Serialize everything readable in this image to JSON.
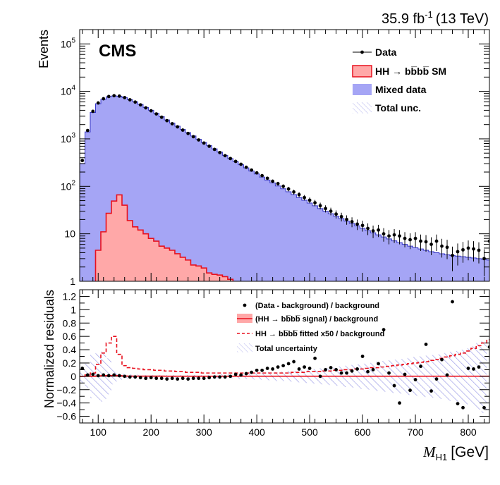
{
  "header": {
    "lumi_value": "35.9 fb",
    "lumi_exp": "-1",
    "energy": "(13 TeV)",
    "experiment": "CMS"
  },
  "chart_data": [
    {
      "type": "histogram",
      "ylabel": "Events",
      "yscale": "log",
      "ylim": [
        1,
        200000
      ],
      "xlim": [
        65,
        840
      ],
      "bin_width": 10,
      "y_ticks": [
        "1",
        "10",
        "10^2",
        "10^3",
        "10^4",
        "10^5"
      ],
      "legend": {
        "placement": "top-right",
        "entries": [
          "Data",
          "HH → bb̅bb̅ SM",
          "Mixed data",
          "Total unc."
        ]
      },
      "bin_edges_start": 65,
      "mixed_data": [
        300,
        1400,
        3600,
        5500,
        6800,
        7700,
        8000,
        7900,
        7400,
        6700,
        6000,
        5300,
        4600,
        4000,
        3450,
        2950,
        2500,
        2150,
        1850,
        1580,
        1350,
        1150,
        980,
        840,
        720,
        615,
        525,
        450,
        385,
        330,
        285,
        245,
        210,
        182,
        157,
        136,
        118,
        102,
        89,
        77,
        67,
        58,
        51,
        44.5,
        39,
        34,
        30,
        26.5,
        23.5,
        21,
        18.5,
        16.5,
        14.7,
        13.1,
        11.7,
        10.5,
        9.5,
        8.6,
        7.8,
        7.1,
        6.5,
        6.0,
        5.5,
        5.1,
        4.8,
        4.5,
        4.2,
        4.0,
        3.8,
        3.6,
        3.5,
        3.4,
        3.3,
        3.2,
        3.1,
        3.0,
        2.9,
        2.8
      ],
      "signal": [
        0.5,
        0.5,
        0.5,
        4.5,
        11,
        27,
        49,
        66,
        40,
        19,
        14,
        12,
        10,
        8,
        7,
        5.5,
        5,
        4.5,
        3.8,
        3.2,
        2.8,
        2.2,
        2.1,
        1.9,
        1.5,
        1.4,
        1.35,
        1.25,
        1.1,
        0.95,
        0.9,
        0.85,
        0.8,
        0.75,
        0.7,
        0.65,
        0.6,
        0.55,
        0.5,
        0.5
      ],
      "data_points": [
        {
          "x": 70,
          "y": 350
        },
        {
          "x": 80,
          "y": 1500
        },
        {
          "x": 90,
          "y": 3800
        },
        {
          "x": 100,
          "y": 5700
        },
        {
          "x": 110,
          "y": 7000
        },
        {
          "x": 120,
          "y": 7800
        },
        {
          "x": 130,
          "y": 8100
        },
        {
          "x": 140,
          "y": 7950
        },
        {
          "x": 150,
          "y": 7400
        },
        {
          "x": 160,
          "y": 6650
        },
        {
          "x": 170,
          "y": 5950
        },
        {
          "x": 180,
          "y": 5200
        },
        {
          "x": 190,
          "y": 4500
        },
        {
          "x": 200,
          "y": 3900
        },
        {
          "x": 210,
          "y": 3350
        },
        {
          "x": 220,
          "y": 2850
        },
        {
          "x": 230,
          "y": 2420
        },
        {
          "x": 240,
          "y": 2080
        },
        {
          "x": 250,
          "y": 1790
        },
        {
          "x": 260,
          "y": 1530
        },
        {
          "x": 270,
          "y": 1300
        },
        {
          "x": 280,
          "y": 1110
        },
        {
          "x": 290,
          "y": 950
        },
        {
          "x": 300,
          "y": 815
        },
        {
          "x": 310,
          "y": 700
        },
        {
          "x": 320,
          "y": 600
        },
        {
          "x": 330,
          "y": 515
        },
        {
          "x": 340,
          "y": 442
        },
        {
          "x": 350,
          "y": 385
        },
        {
          "x": 360,
          "y": 335
        },
        {
          "x": 370,
          "y": 292
        },
        {
          "x": 380,
          "y": 252
        },
        {
          "x": 390,
          "y": 220
        },
        {
          "x": 400,
          "y": 192
        },
        {
          "x": 410,
          "y": 168
        },
        {
          "x": 420,
          "y": 148
        },
        {
          "x": 430,
          "y": 128
        },
        {
          "x": 440,
          "y": 114
        },
        {
          "x": 450,
          "y": 100
        },
        {
          "x": 460,
          "y": 88
        },
        {
          "x": 470,
          "y": 76
        },
        {
          "x": 480,
          "y": 67
        },
        {
          "x": 490,
          "y": 58
        },
        {
          "x": 500,
          "y": 51
        },
        {
          "x": 510,
          "y": 45
        },
        {
          "x": 520,
          "y": 39
        },
        {
          "x": 530,
          "y": 34
        },
        {
          "x": 540,
          "y": 30
        },
        {
          "x": 550,
          "y": 26
        },
        {
          "x": 560,
          "y": 23
        },
        {
          "x": 570,
          "y": 20
        },
        {
          "x": 580,
          "y": 18
        },
        {
          "x": 590,
          "y": 16
        },
        {
          "x": 600,
          "y": 15
        },
        {
          "x": 610,
          "y": 13
        },
        {
          "x": 620,
          "y": 11.5
        },
        {
          "x": 630,
          "y": 12
        },
        {
          "x": 640,
          "y": 10
        },
        {
          "x": 650,
          "y": 9
        },
        {
          "x": 660,
          "y": 9.5
        },
        {
          "x": 670,
          "y": 9
        },
        {
          "x": 680,
          "y": 8
        },
        {
          "x": 690,
          "y": 7.5
        },
        {
          "x": 700,
          "y": 8
        },
        {
          "x": 710,
          "y": 7
        },
        {
          "x": 720,
          "y": 6.8
        },
        {
          "x": 730,
          "y": 6
        },
        {
          "x": 740,
          "y": 7
        },
        {
          "x": 750,
          "y": 5.5
        },
        {
          "x": 760,
          "y": 5.2
        },
        {
          "x": 770,
          "y": 3.5
        },
        {
          "x": 780,
          "y": 4.2
        },
        {
          "x": 790,
          "y": 4.6
        },
        {
          "x": 800,
          "y": 5.0
        },
        {
          "x": 810,
          "y": 4.8
        },
        {
          "x": 820,
          "y": 4.5
        },
        {
          "x": 830,
          "y": 3.0
        },
        {
          "x": 840,
          "y": 7.0
        }
      ]
    },
    {
      "type": "histogram",
      "ylabel": "Normalized residuals",
      "xlabel": "M",
      "xlabel_sub": "H1",
      "xlabel_unit": "[GeV]",
      "ylim": [
        -0.7,
        1.3
      ],
      "xlim": [
        65,
        840
      ],
      "x_ticks": [
        100,
        200,
        300,
        400,
        500,
        600,
        700,
        800
      ],
      "y_ticks": [
        "−0.6",
        "−0.4",
        "−0.2",
        "0",
        "0.2",
        "0.4",
        "0.6",
        "0.8",
        "1",
        "1.2"
      ],
      "legend": {
        "placement": "top-right",
        "entries": [
          "(Data - background) / background",
          "(HH → bb̅bb̅ signal) / background",
          "HH → bb̅bb̅ fitted x50 / background",
          "Total uncertainty"
        ]
      },
      "residual_points": [
        {
          "x": 70,
          "y": 0.12
        },
        {
          "x": 80,
          "y": 0.02
        },
        {
          "x": 90,
          "y": 0.03
        },
        {
          "x": 100,
          "y": 0.01
        },
        {
          "x": 110,
          "y": 0.02
        },
        {
          "x": 120,
          "y": 0.01
        },
        {
          "x": 130,
          "y": 0.02
        },
        {
          "x": 140,
          "y": 0.01
        },
        {
          "x": 150,
          "y": 0.0
        },
        {
          "x": 160,
          "y": -0.01
        },
        {
          "x": 170,
          "y": -0.01
        },
        {
          "x": 180,
          "y": -0.02
        },
        {
          "x": 190,
          "y": -0.03
        },
        {
          "x": 200,
          "y": -0.02
        },
        {
          "x": 210,
          "y": -0.03
        },
        {
          "x": 220,
          "y": -0.03
        },
        {
          "x": 230,
          "y": -0.04
        },
        {
          "x": 240,
          "y": -0.03
        },
        {
          "x": 250,
          "y": -0.04
        },
        {
          "x": 260,
          "y": -0.03
        },
        {
          "x": 270,
          "y": -0.04
        },
        {
          "x": 280,
          "y": -0.03
        },
        {
          "x": 290,
          "y": -0.03
        },
        {
          "x": 300,
          "y": -0.03
        },
        {
          "x": 310,
          "y": -0.02
        },
        {
          "x": 320,
          "y": -0.01
        },
        {
          "x": 330,
          "y": -0.01
        },
        {
          "x": 340,
          "y": -0.01
        },
        {
          "x": 350,
          "y": 0.0
        },
        {
          "x": 360,
          "y": 0.03
        },
        {
          "x": 370,
          "y": 0.02
        },
        {
          "x": 380,
          "y": 0.04
        },
        {
          "x": 390,
          "y": 0.06
        },
        {
          "x": 400,
          "y": 0.09
        },
        {
          "x": 410,
          "y": 0.09
        },
        {
          "x": 420,
          "y": 0.12
        },
        {
          "x": 430,
          "y": 0.11
        },
        {
          "x": 440,
          "y": 0.14
        },
        {
          "x": 450,
          "y": 0.16
        },
        {
          "x": 460,
          "y": 0.19
        },
        {
          "x": 470,
          "y": 0.22
        },
        {
          "x": 480,
          "y": 0.11
        },
        {
          "x": 490,
          "y": 0.14
        },
        {
          "x": 500,
          "y": 0.12
        },
        {
          "x": 510,
          "y": 0.27
        },
        {
          "x": 520,
          "y": 0.0
        },
        {
          "x": 530,
          "y": 0.1
        },
        {
          "x": 540,
          "y": 0.13
        },
        {
          "x": 550,
          "y": 0.1
        },
        {
          "x": 560,
          "y": 0.05
        },
        {
          "x": 570,
          "y": 0.05
        },
        {
          "x": 580,
          "y": 0.08
        },
        {
          "x": 590,
          "y": 0.11
        },
        {
          "x": 600,
          "y": 0.3
        },
        {
          "x": 610,
          "y": 0.07
        },
        {
          "x": 620,
          "y": 0.1
        },
        {
          "x": 630,
          "y": 0.19
        },
        {
          "x": 640,
          "y": 0.7
        },
        {
          "x": 650,
          "y": 0.05
        },
        {
          "x": 660,
          "y": -0.14
        },
        {
          "x": 670,
          "y": -0.4
        },
        {
          "x": 680,
          "y": 0.03
        },
        {
          "x": 690,
          "y": -0.21
        },
        {
          "x": 700,
          "y": -0.05
        },
        {
          "x": 710,
          "y": 0.15
        },
        {
          "x": 720,
          "y": 0.48
        },
        {
          "x": 730,
          "y": -0.22
        },
        {
          "x": 740,
          "y": -0.04
        },
        {
          "x": 750,
          "y": 0.25
        },
        {
          "x": 760,
          "y": 0.02
        },
        {
          "x": 770,
          "y": 1.12
        },
        {
          "x": 780,
          "y": -0.41
        },
        {
          "x": 790,
          "y": -0.47
        },
        {
          "x": 800,
          "y": 0.12
        },
        {
          "x": 810,
          "y": 0.11
        },
        {
          "x": 820,
          "y": 0.14
        },
        {
          "x": 830,
          "y": -0.47
        },
        {
          "x": 840,
          "y": 0.44
        }
      ],
      "uncertainty_band": [
        [
          0.12,
          -0.1
        ],
        [
          0.2,
          -0.17
        ],
        [
          0.33,
          -0.33
        ],
        [
          0.36,
          -0.36
        ],
        [
          0.4,
          -0.38
        ],
        [
          0.27,
          -0.27
        ],
        [
          0.12,
          -0.12
        ],
        [
          0.05,
          -0.05
        ],
        [
          0.04,
          -0.04
        ],
        [
          0.03,
          -0.03
        ],
        [
          0.03,
          -0.03
        ],
        [
          0.02,
          -0.02
        ],
        [
          0.02,
          -0.02
        ],
        [
          0.02,
          -0.02
        ],
        [
          0.02,
          -0.02
        ],
        [
          0.02,
          -0.02
        ],
        [
          0.02,
          -0.02
        ],
        [
          0.02,
          -0.02
        ],
        [
          0.02,
          -0.02
        ],
        [
          0.02,
          -0.02
        ],
        [
          0.02,
          -0.02
        ],
        [
          0.02,
          -0.02
        ],
        [
          0.02,
          -0.02
        ],
        [
          0.02,
          -0.02
        ],
        [
          0.02,
          -0.02
        ],
        [
          0.02,
          -0.02
        ],
        [
          0.03,
          -0.03
        ],
        [
          0.03,
          -0.03
        ],
        [
          0.03,
          -0.03
        ],
        [
          0.03,
          -0.03
        ],
        [
          0.04,
          -0.04
        ],
        [
          0.04,
          -0.04
        ],
        [
          0.04,
          -0.04
        ],
        [
          0.05,
          -0.05
        ],
        [
          0.05,
          -0.05
        ],
        [
          0.06,
          -0.06
        ],
        [
          0.06,
          -0.06
        ],
        [
          0.07,
          -0.07
        ],
        [
          0.07,
          -0.07
        ],
        [
          0.08,
          -0.08
        ],
        [
          0.08,
          -0.08
        ],
        [
          0.09,
          -0.09
        ],
        [
          0.1,
          -0.1
        ],
        [
          0.1,
          -0.1
        ],
        [
          0.11,
          -0.11
        ],
        [
          0.12,
          -0.12
        ],
        [
          0.12,
          -0.12
        ],
        [
          0.13,
          -0.13
        ],
        [
          0.14,
          -0.14
        ],
        [
          0.15,
          -0.15
        ],
        [
          0.16,
          -0.16
        ],
        [
          0.17,
          -0.17
        ],
        [
          0.18,
          -0.18
        ],
        [
          0.19,
          -0.19
        ],
        [
          0.2,
          -0.2
        ],
        [
          0.21,
          -0.21
        ],
        [
          0.22,
          -0.22
        ],
        [
          0.23,
          -0.23
        ],
        [
          0.24,
          -0.24
        ],
        [
          0.25,
          -0.25
        ],
        [
          0.26,
          -0.26
        ],
        [
          0.27,
          -0.27
        ],
        [
          0.28,
          -0.28
        ],
        [
          0.29,
          -0.29
        ],
        [
          0.3,
          -0.3
        ],
        [
          0.31,
          -0.31
        ],
        [
          0.32,
          -0.32
        ],
        [
          0.33,
          -0.33
        ],
        [
          0.34,
          -0.34
        ],
        [
          0.36,
          -0.36
        ],
        [
          0.37,
          -0.37
        ],
        [
          0.38,
          -0.38
        ],
        [
          0.4,
          -0.4
        ],
        [
          0.42,
          -0.42
        ],
        [
          0.45,
          -0.45
        ],
        [
          0.5,
          -0.5
        ],
        [
          0.55,
          -0.55
        ]
      ],
      "fitted_x50": [
        0.0,
        0.02,
        0.05,
        0.18,
        0.35,
        0.5,
        0.6,
        0.33,
        0.16,
        0.13,
        0.12,
        0.11,
        0.1,
        0.1,
        0.09,
        0.09,
        0.08,
        0.08,
        0.07,
        0.07,
        0.06,
        0.06,
        0.06,
        0.05,
        0.05,
        0.05,
        0.05,
        0.05,
        0.05,
        0.05,
        0.05,
        0.05,
        0.05,
        0.05,
        0.05,
        0.05,
        0.05,
        0.05,
        0.05,
        0.05,
        0.06,
        0.06,
        0.06,
        0.07,
        0.07,
        0.07,
        0.08,
        0.08,
        0.09,
        0.09,
        0.1,
        0.1,
        0.11,
        0.11,
        0.12,
        0.13,
        0.13,
        0.14,
        0.15,
        0.16,
        0.17,
        0.18,
        0.19,
        0.2,
        0.21,
        0.22,
        0.24,
        0.25,
        0.27,
        0.29,
        0.31,
        0.33,
        0.35,
        0.38,
        0.42,
        0.46,
        0.5,
        0.55
      ],
      "signal_over_bkg": [
        0.0,
        0.0,
        0.0,
        0.005,
        0.01,
        0.012,
        0.012,
        0.01,
        0.005,
        0.003,
        0.003,
        0.003,
        0.003,
        0.003,
        0.003,
        0.003,
        0.002,
        0.002,
        0.002,
        0.002,
        0.002,
        0.002,
        0.002,
        0.002,
        0.002,
        0.002,
        0.002,
        0.002,
        0.002,
        0.002,
        0.002,
        0.002,
        0.002,
        0.002,
        0.002,
        0.002,
        0.002,
        0.002,
        0.002,
        0.002
      ]
    }
  ],
  "colors": {
    "mixed_fill": "#a5a5f5",
    "mixed_line": "#3535c8",
    "signal_fill": "#ffa8a8",
    "signal_line": "#e8101e",
    "band_hatch": "#9a9ae6"
  }
}
